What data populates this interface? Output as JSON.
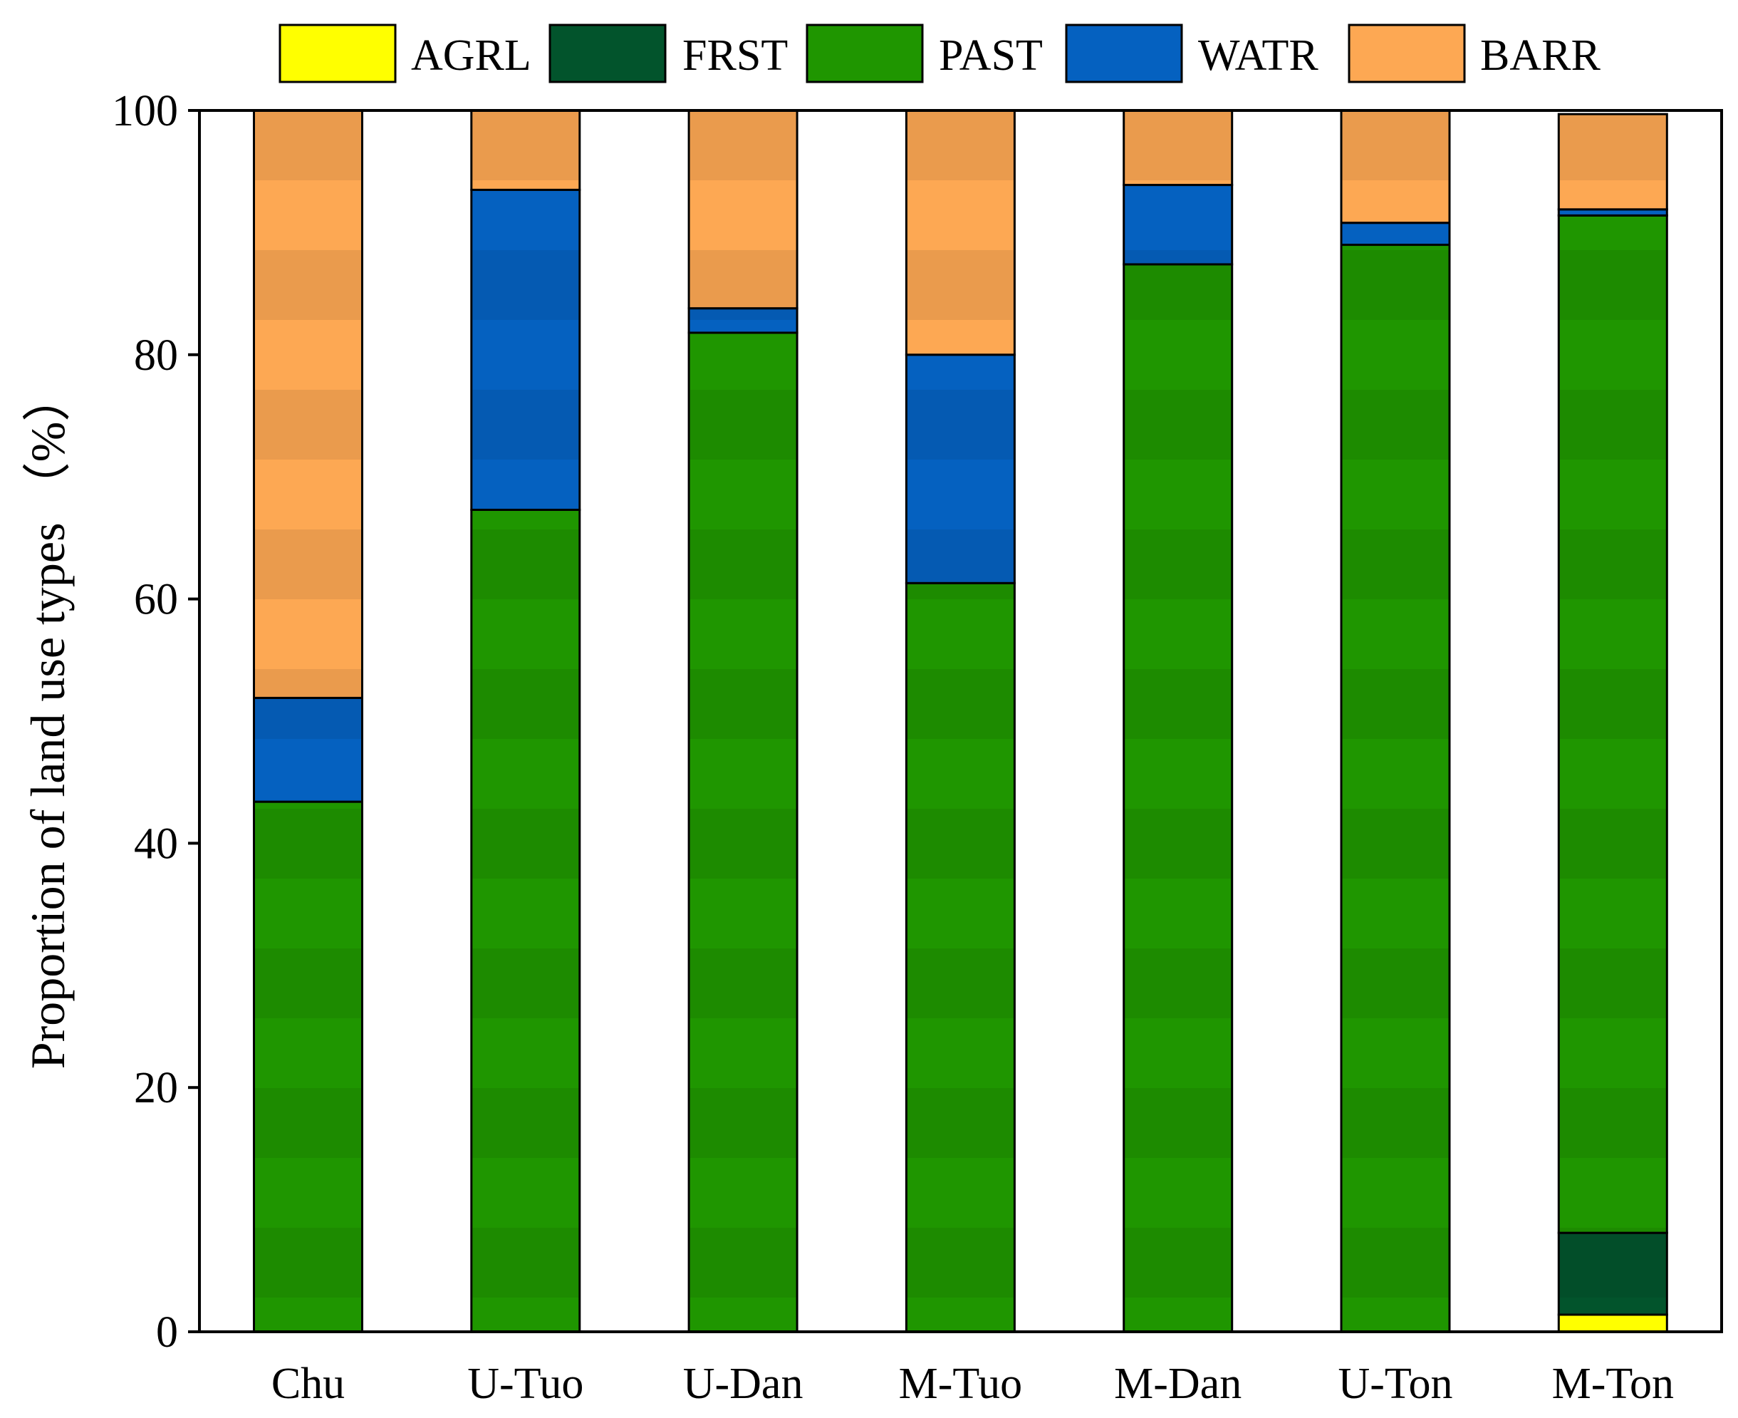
{
  "chart_data": {
    "type": "bar",
    "stacked": true,
    "title": "",
    "xlabel": "",
    "ylabel": "Proportion of land use types （%）",
    "ylim": [
      0,
      100
    ],
    "yticks": [
      0,
      20,
      40,
      60,
      80,
      100
    ],
    "grid": false,
    "legend_position": "top",
    "categories": [
      "Chu",
      "U-Tuo",
      "U-Dan",
      "M-Tuo",
      "M-Dan",
      "U-Ton",
      "M-Ton"
    ],
    "series": [
      {
        "name": "AGRL",
        "color": "#FFFF00",
        "values": [
          0,
          0,
          0,
          0,
          0,
          0,
          1.4
        ]
      },
      {
        "name": "FRST",
        "color": "#02542C",
        "values": [
          0,
          0,
          0,
          0,
          0,
          0,
          6.7
        ]
      },
      {
        "name": "PAST",
        "color": "#1F9600",
        "values": [
          43.4,
          67.3,
          81.8,
          61.3,
          87.4,
          89.0,
          83.3
        ]
      },
      {
        "name": "WATR",
        "color": "#0561C0",
        "values": [
          8.5,
          26.2,
          2.0,
          18.7,
          6.5,
          1.8,
          0.5
        ]
      },
      {
        "name": "BARR",
        "color": "#FDA853",
        "values": [
          48.1,
          6.5,
          16.2,
          20.0,
          6.1,
          9.2,
          7.8
        ]
      }
    ]
  }
}
